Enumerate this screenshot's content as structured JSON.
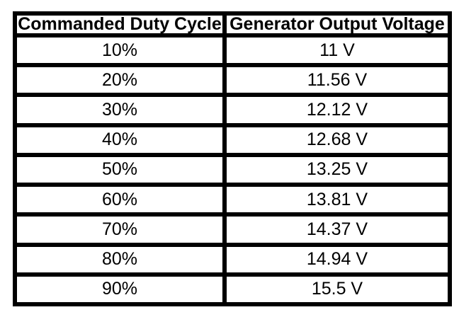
{
  "page": {
    "background_color": "#ffffff",
    "border_color": "#000000",
    "text_color": "#000000"
  },
  "chart_data": {
    "type": "table",
    "title": "",
    "columns": [
      "Commanded Duty Cycle",
      "Generator Output Voltage"
    ],
    "rows": [
      [
        "10%",
        "11 V"
      ],
      [
        "20%",
        "11.56 V"
      ],
      [
        "30%",
        "12.12 V"
      ],
      [
        "40%",
        "12.68 V"
      ],
      [
        "50%",
        "13.25 V"
      ],
      [
        "60%",
        "13.81 V"
      ],
      [
        "70%",
        "14.37 V"
      ],
      [
        "80%",
        "14.94 V"
      ],
      [
        "90%",
        "15.5 V"
      ]
    ],
    "numeric": {
      "commanded_duty_cycle_percent": [
        10,
        20,
        30,
        40,
        50,
        60,
        70,
        80,
        90
      ],
      "generator_output_voltage_v": [
        11,
        11.56,
        12.12,
        12.68,
        13.25,
        13.81,
        14.37,
        14.94,
        15.5
      ]
    },
    "layout": {
      "grid": "thick-black-borders",
      "header_style": "bold",
      "cell_alignment": "center"
    }
  }
}
